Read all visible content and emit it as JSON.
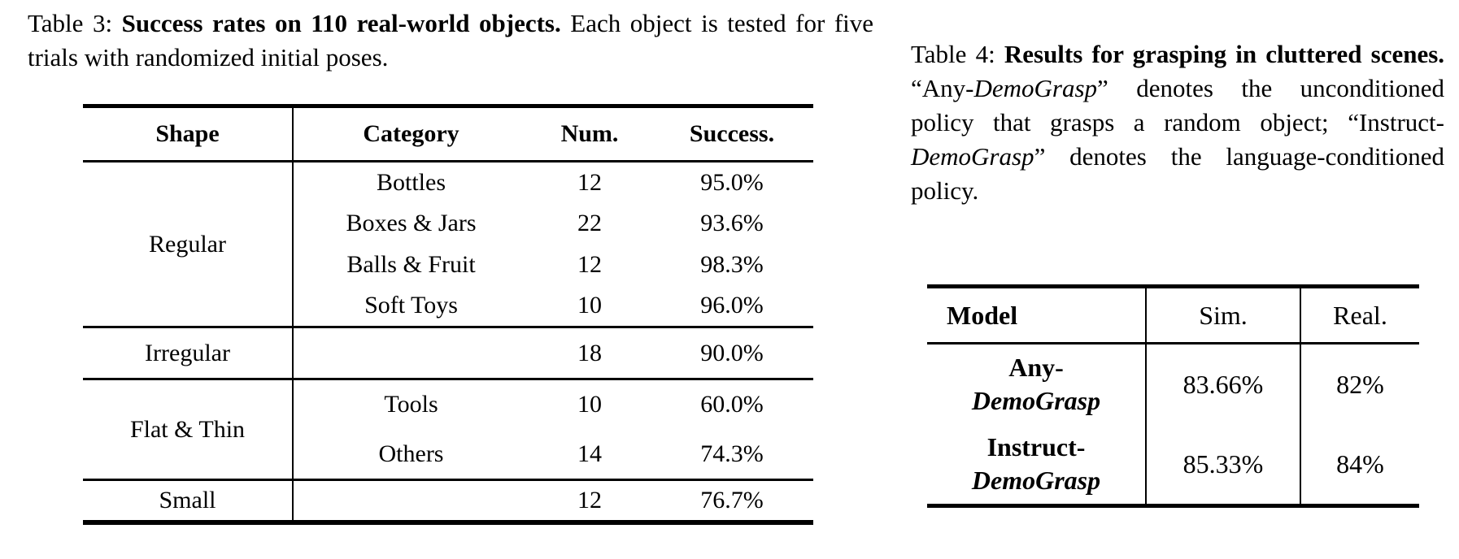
{
  "table3": {
    "caption": {
      "label": "Table 3:",
      "title": "Success rates on 110 real-world objects.",
      "text": "Each object is tested for five trials with randomized initial poses."
    },
    "headers": {
      "shape": "Shape",
      "category": "Category",
      "num": "Num.",
      "success": "Success."
    },
    "groups": [
      {
        "shape": "Regular",
        "rows": [
          {
            "category": "Bottles",
            "num": "12",
            "success": "95.0%"
          },
          {
            "category": "Boxes & Jars",
            "num": "22",
            "success": "93.6%"
          },
          {
            "category": "Balls & Fruit",
            "num": "12",
            "success": "98.3%"
          },
          {
            "category": "Soft Toys",
            "num": "10",
            "success": "96.0%"
          }
        ]
      },
      {
        "shape": "Irregular",
        "rows": [
          {
            "category": "",
            "num": "18",
            "success": "90.0%"
          }
        ]
      },
      {
        "shape": "Flat & Thin",
        "rows": [
          {
            "category": "Tools",
            "num": "10",
            "success": "60.0%"
          },
          {
            "category": "Others",
            "num": "14",
            "success": "74.3%"
          }
        ]
      },
      {
        "shape": "Small",
        "rows": [
          {
            "category": "",
            "num": "12",
            "success": "76.7%"
          }
        ]
      }
    ]
  },
  "table4": {
    "caption": {
      "label": "Table 4:",
      "title": "Results for grasping in cluttered scenes.",
      "seg1": "“Any-",
      "italic1": "DemoGrasp",
      "seg2": "” denotes the unconditioned policy that grasps a random object; “Instruct-",
      "italic2": "DemoGrasp",
      "seg3": "” denotes the language-conditioned policy."
    },
    "headers": {
      "model": "Model",
      "sim": "Sim.",
      "real": "Real."
    },
    "rows": [
      {
        "model_prefix": "Any-",
        "model_name": "DemoGrasp",
        "sim": "83.66%",
        "real": "82%"
      },
      {
        "model_prefix": "Instruct-",
        "model_name": "DemoGrasp",
        "sim": "85.33%",
        "real": "84%"
      }
    ]
  }
}
